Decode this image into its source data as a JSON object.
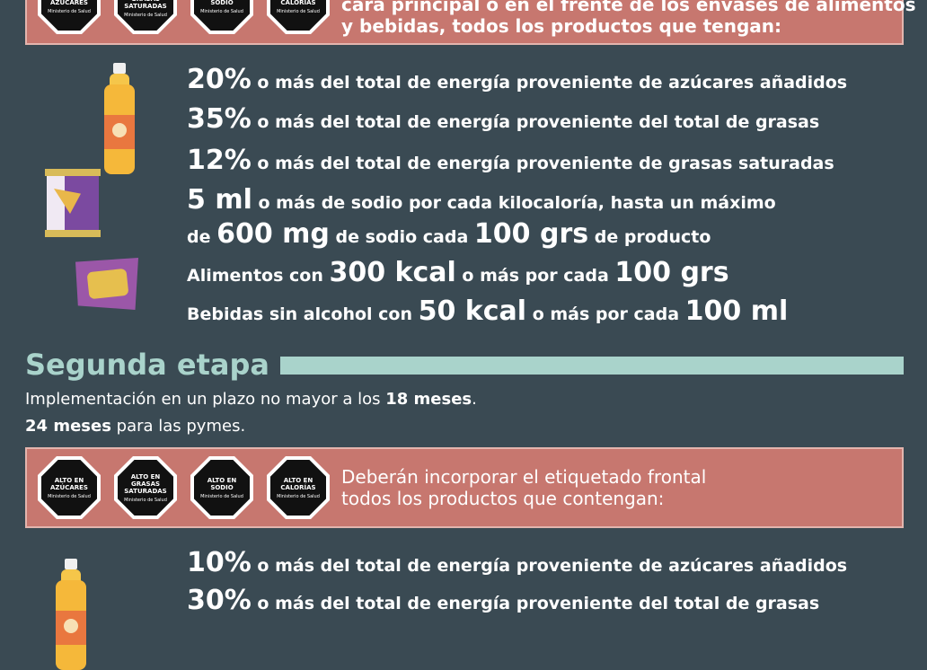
{
  "seals": [
    {
      "l1": "ALTO EN",
      "l2": "AZÚCARES",
      "l3": "Ministerio de Salud"
    },
    {
      "l1": "ALTO EN",
      "l2": "GRASAS SATURADAS",
      "l3": "Ministerio de Salud"
    },
    {
      "l1": "ALTO EN",
      "l2": "SODIO",
      "l3": "Ministerio de Salud"
    },
    {
      "l1": "ALTO EN",
      "l2": "CALORÍAS",
      "l3": "Ministerio de Salud"
    }
  ],
  "banner_top": {
    "line1": "cara principal o en el frente de los envases de alimentos",
    "line2": "y bebidas, todos los productos que tengan:"
  },
  "stage1": {
    "c1": {
      "big": "20%",
      "text": " o más del total de energía proveniente de azúcares añadidos"
    },
    "c2": {
      "big": "35%",
      "text": " o más del total de energía proveniente del total de grasas"
    },
    "c3": {
      "big": "12%",
      "text": " o más del total de energía proveniente de grasas saturadas"
    },
    "c4": {
      "big": "5 ml",
      "text": " o más de sodio por cada kilocaloría, hasta un máximo"
    },
    "c5": {
      "pre": "de ",
      "big1": "600 mg",
      "mid": " de sodio cada ",
      "big2": "100 grs",
      "post": " de producto"
    },
    "c6": {
      "pre": "Alimentos con ",
      "big1": "300 kcal",
      "mid": " o más por cada ",
      "big2": "100 grs"
    },
    "c7": {
      "pre": "Bebidas sin alcohol con ",
      "big1": "50 kcal",
      "mid": " o más por cada ",
      "big2": "100 ml"
    }
  },
  "stage2": {
    "title": "Segunda etapa",
    "impl1_pre": "Implementación en un plazo no mayor a los ",
    "impl1_bold": "18 meses",
    "impl1_post": ".",
    "impl2_bold": "24 meses",
    "impl2_post": " para las pymes.",
    "banner_line1": "Deberán incorporar el etiquetado frontal",
    "banner_line2": "todos los productos que contengan:",
    "c1": {
      "big": "10%",
      "text": " o más del total de energía proveniente de azúcares añadidos"
    },
    "c2": {
      "big": "30%",
      "text": " o más del total de energía proveniente del total de grasas"
    }
  },
  "colors": {
    "background": "#3a4a53",
    "banner": "#c7776f",
    "accent": "#a9d3cb"
  }
}
